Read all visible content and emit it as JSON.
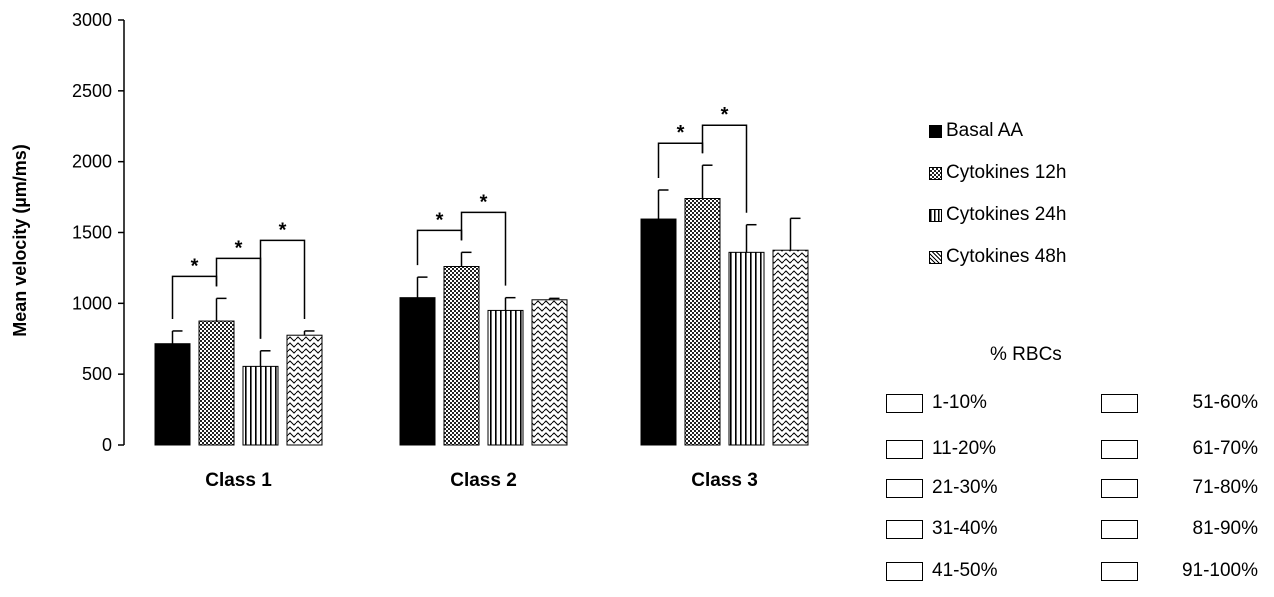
{
  "chart_data": {
    "type": "bar",
    "ylabel": "Mean velocity (µm/ms)",
    "ylim": [
      0,
      3000
    ],
    "yticks": [
      0,
      500,
      1000,
      1500,
      2000,
      2500,
      3000
    ],
    "categories": [
      "Class 1",
      "Class 2",
      "Class 3"
    ],
    "series": [
      {
        "name": "Basal AA",
        "values": [
          715,
          1040,
          1595
        ],
        "errors": [
          90,
          145,
          205
        ],
        "pattern": "solid"
      },
      {
        "name": "Cytokines 12h",
        "values": [
          875,
          1260,
          1740
        ],
        "errors": [
          160,
          100,
          235
        ],
        "pattern": "dots"
      },
      {
        "name": "Cytokines 24h",
        "values": [
          555,
          950,
          1360
        ],
        "errors": [
          110,
          90,
          195
        ],
        "pattern": "vlines"
      },
      {
        "name": "Cytokines 48h",
        "values": [
          775,
          1025,
          1375
        ],
        "errors": [
          30,
          10,
          225
        ],
        "pattern": "waves"
      }
    ],
    "significance": [
      {
        "category": 0,
        "from": 0,
        "to": 1,
        "label": "*"
      },
      {
        "category": 0,
        "from": 1,
        "to": 2,
        "label": "*"
      },
      {
        "category": 0,
        "from": 2,
        "to": 3,
        "label": "*"
      },
      {
        "category": 1,
        "from": 0,
        "to": 1,
        "label": "*"
      },
      {
        "category": 1,
        "from": 1,
        "to": 2,
        "label": "*"
      },
      {
        "category": 2,
        "from": 0,
        "to": 1,
        "label": "*"
      },
      {
        "category": 2,
        "from": 1,
        "to": 2,
        "label": "*"
      }
    ],
    "legend_position": "right",
    "grid": false
  },
  "rbc_legend": {
    "title": "% RBCs",
    "left_items": [
      "1-10%",
      "11-20%",
      "21-30%",
      "31-40%",
      "41-50%"
    ],
    "right_items": [
      "51-60%",
      "61-70%",
      "71-80%",
      "81-90%",
      "91-100%"
    ]
  }
}
